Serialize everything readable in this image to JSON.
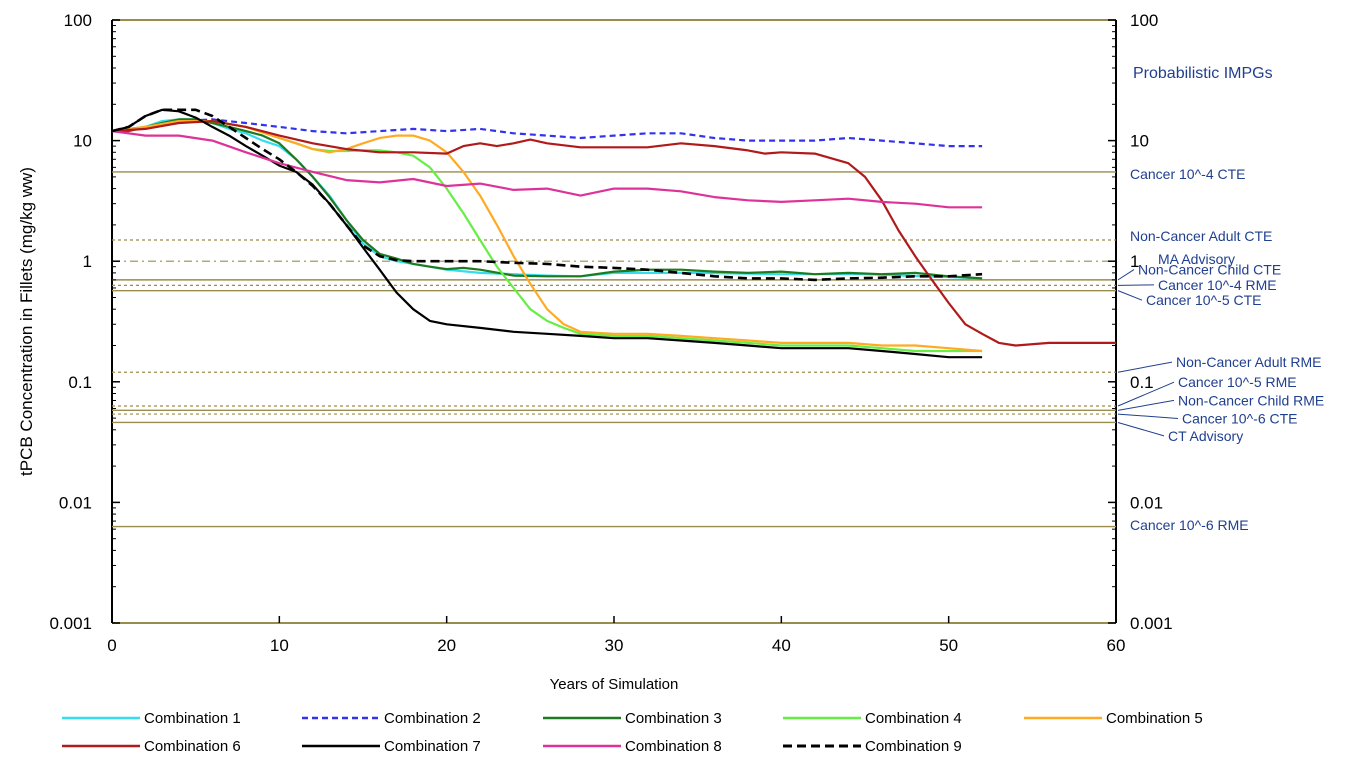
{
  "chart_data": {
    "type": "line",
    "title": "",
    "xlabel": "Years of Simulation",
    "ylabel": "tPCB Concentration in Fillets  (mg/kg ww)",
    "xlim": [
      0,
      60
    ],
    "ylim": [
      0.001,
      100
    ],
    "yscale": "log",
    "x_ticks": [
      "0",
      "10",
      "20",
      "30",
      "40",
      "50",
      "60"
    ],
    "y_ticks_left": [
      "0.001",
      "0.01",
      "0.1",
      "1",
      "10",
      "100"
    ],
    "y_ticks_right": [
      "0.001",
      "0.01",
      "0.1",
      "1",
      "10",
      "100"
    ],
    "right_axis_title": "Probabilistic IMPGs",
    "legend_position": "bottom",
    "series": [
      {
        "name": "Combination 1",
        "color": "#33ddee",
        "dash": "solid",
        "x": [
          0,
          1,
          2,
          3,
          4,
          5,
          6,
          7,
          8,
          9,
          10,
          11,
          12,
          13,
          14,
          15,
          16,
          17,
          18,
          19,
          20,
          22,
          24,
          26,
          28,
          30,
          35,
          40,
          45,
          50,
          52
        ],
        "y": [
          12,
          12,
          13,
          14.5,
          15,
          15,
          14,
          12.5,
          11.5,
          10,
          9,
          7,
          5,
          3.5,
          2.2,
          1.4,
          1.1,
          1.0,
          0.95,
          0.9,
          0.85,
          0.8,
          0.78,
          0.76,
          0.75,
          0.8,
          0.8,
          0.78,
          0.78,
          0.74,
          0.72
        ]
      },
      {
        "name": "Combination 2",
        "color": "#3333ee",
        "dash": "dashed",
        "x": [
          0,
          2,
          4,
          6,
          8,
          10,
          12,
          14,
          16,
          18,
          20,
          22,
          24,
          26,
          28,
          30,
          32,
          34,
          36,
          38,
          40,
          42,
          44,
          46,
          48,
          50,
          52
        ],
        "y": [
          12,
          13,
          14.5,
          15,
          14,
          13,
          12,
          11.5,
          12,
          12.5,
          12,
          12.5,
          11.5,
          11,
          10.5,
          11,
          11.5,
          11.5,
          10.5,
          10,
          10,
          10,
          10.5,
          10,
          9.5,
          9,
          9
        ]
      },
      {
        "name": "Combination 3",
        "color": "#1f7a1f",
        "dash": "solid",
        "x": [
          0,
          1,
          2,
          3,
          4,
          5,
          6,
          7,
          8,
          9,
          10,
          11,
          12,
          13,
          14,
          15,
          16,
          17,
          18,
          19,
          20,
          21,
          22,
          24,
          26,
          28,
          30,
          32,
          34,
          36,
          38,
          40,
          42,
          44,
          46,
          48,
          50,
          52
        ],
        "y": [
          12,
          12,
          13,
          14,
          15,
          15,
          14,
          13,
          12,
          11,
          9.5,
          7,
          5,
          3.4,
          2.2,
          1.5,
          1.15,
          1.05,
          0.95,
          0.9,
          0.86,
          0.88,
          0.85,
          0.76,
          0.75,
          0.75,
          0.82,
          0.85,
          0.85,
          0.82,
          0.8,
          0.82,
          0.78,
          0.8,
          0.78,
          0.8,
          0.75,
          0.72
        ]
      },
      {
        "name": "Combination 4",
        "color": "#66ee44",
        "dash": "solid",
        "x": [
          0,
          2,
          4,
          6,
          8,
          10,
          11,
          12,
          13,
          14,
          15,
          16,
          17,
          18,
          19,
          20,
          21,
          22,
          23,
          24,
          25,
          26,
          27,
          28,
          30,
          32,
          34,
          36,
          38,
          40,
          42,
          44,
          46,
          48,
          50,
          52
        ],
        "y": [
          12,
          13,
          14.5,
          14.5,
          13,
          10.5,
          9.5,
          8.5,
          8.2,
          8.2,
          8.3,
          8.3,
          8,
          7.5,
          6,
          4,
          2.5,
          1.5,
          0.9,
          0.6,
          0.4,
          0.32,
          0.28,
          0.25,
          0.24,
          0.24,
          0.23,
          0.22,
          0.21,
          0.2,
          0.2,
          0.2,
          0.19,
          0.18,
          0.18,
          0.18
        ]
      },
      {
        "name": "Combination 5",
        "color": "#ffaa22",
        "dash": "solid",
        "x": [
          0,
          2,
          4,
          6,
          8,
          10,
          11,
          12,
          13,
          14,
          15,
          16,
          17,
          18,
          19,
          20,
          21,
          22,
          23,
          24,
          25,
          26,
          27,
          28,
          30,
          32,
          34,
          36,
          38,
          40,
          42,
          44,
          46,
          48,
          50,
          52
        ],
        "y": [
          12,
          13,
          14.5,
          14.5,
          13,
          10.5,
          9.5,
          8.5,
          8,
          8.5,
          9.5,
          10.5,
          11,
          11,
          10,
          8,
          5.5,
          3.5,
          2,
          1.1,
          0.65,
          0.4,
          0.3,
          0.26,
          0.25,
          0.25,
          0.24,
          0.23,
          0.22,
          0.21,
          0.21,
          0.21,
          0.2,
          0.2,
          0.19,
          0.18
        ]
      },
      {
        "name": "Combination 6",
        "color": "#b01a1a",
        "dash": "solid",
        "x": [
          0,
          2,
          4,
          6,
          8,
          10,
          12,
          14,
          16,
          18,
          20,
          21,
          22,
          23,
          24,
          25,
          26,
          28,
          30,
          32,
          34,
          36,
          38,
          39,
          40,
          42,
          44,
          45,
          46,
          47,
          48,
          49,
          50,
          51,
          52,
          53,
          54,
          56,
          58,
          60
        ],
        "y": [
          12,
          12.5,
          14,
          14.5,
          13,
          11,
          9.5,
          8.5,
          8,
          8,
          7.8,
          9,
          9.5,
          9,
          9.5,
          10.2,
          9.5,
          8.8,
          8.8,
          8.8,
          9.5,
          9,
          8.3,
          7.8,
          8,
          7.8,
          6.5,
          5,
          3.2,
          1.8,
          1.1,
          0.7,
          0.45,
          0.3,
          0.25,
          0.21,
          0.2,
          0.21,
          0.21,
          0.21
        ]
      },
      {
        "name": "Combination 7",
        "color": "#000000",
        "dash": "solid",
        "x": [
          0,
          1,
          2,
          3,
          4,
          5,
          6,
          7,
          8,
          9,
          10,
          11,
          12,
          13,
          14,
          15,
          16,
          17,
          18,
          19,
          20,
          22,
          24,
          26,
          28,
          30,
          32,
          34,
          36,
          38,
          40,
          42,
          44,
          46,
          48,
          50,
          52
        ],
        "y": [
          12,
          13,
          16,
          18,
          17.5,
          15.5,
          13,
          11,
          9,
          7.5,
          6.2,
          5.5,
          4.3,
          3,
          2,
          1.3,
          0.85,
          0.55,
          0.4,
          0.32,
          0.3,
          0.28,
          0.26,
          0.25,
          0.24,
          0.23,
          0.23,
          0.22,
          0.21,
          0.2,
          0.19,
          0.19,
          0.19,
          0.18,
          0.17,
          0.16,
          0.16
        ]
      },
      {
        "name": "Combination 8",
        "color": "#dd3399",
        "dash": "solid",
        "x": [
          0,
          2,
          4,
          6,
          8,
          10,
          12,
          14,
          16,
          18,
          20,
          22,
          24,
          26,
          28,
          30,
          32,
          34,
          36,
          38,
          40,
          42,
          44,
          46,
          48,
          50,
          52
        ],
        "y": [
          12,
          11,
          11,
          10,
          8,
          6.5,
          5.5,
          4.7,
          4.5,
          4.8,
          4.2,
          4.4,
          3.9,
          4,
          3.5,
          4,
          4,
          3.8,
          3.4,
          3.2,
          3.1,
          3.2,
          3.3,
          3.1,
          3,
          2.8,
          2.8
        ]
      },
      {
        "name": "Combination 9",
        "color": "#000000",
        "dash": "dashed",
        "x": [
          0,
          1,
          2,
          3,
          4,
          5,
          6,
          7,
          8,
          9,
          10,
          11,
          12,
          13,
          14,
          15,
          16,
          17,
          18,
          20,
          22,
          24,
          26,
          28,
          30,
          32,
          34,
          36,
          38,
          40,
          42,
          44,
          46,
          48,
          50,
          52
        ],
        "y": [
          12,
          13,
          16,
          18,
          18,
          18,
          16,
          13,
          10.5,
          8.5,
          7,
          5.5,
          4.2,
          3,
          2,
          1.35,
          1.1,
          1.02,
          1.0,
          1.0,
          1.0,
          0.97,
          0.95,
          0.9,
          0.88,
          0.85,
          0.8,
          0.75,
          0.72,
          0.72,
          0.7,
          0.72,
          0.73,
          0.75,
          0.75,
          0.78
        ]
      }
    ],
    "reference_lines": [
      {
        "y": 5.5,
        "style": "solid",
        "color": "#9a8c4c",
        "label": "Cancer 10^-4 CTE",
        "label_y": 5.5
      },
      {
        "y": 1.5,
        "style": "dotted",
        "color": "#9a8c4c",
        "label": "Non-Cancer Adult CTE",
        "label_y": 1.5
      },
      {
        "y": 1.0,
        "style": "dashdot",
        "color": "#9a8c4c",
        "label": "MA  Advisory",
        "label_y": 0.97
      },
      {
        "y": 0.7,
        "style": "solid",
        "color": "#9a8c4c",
        "label": "Non-Cancer Child CTE",
        "label_y": 0.79
      },
      {
        "y": 0.63,
        "style": "dotted",
        "color": "#9a8c4c",
        "label": "Cancer 10^-4 RME",
        "label_y": 0.59
      },
      {
        "y": 0.57,
        "style": "solid",
        "color": "#9a8c4c",
        "label": "Cancer 10^-5 CTE",
        "label_y": 0.44
      },
      {
        "y": 0.12,
        "style": "dotted",
        "color": "#9a8c4c",
        "label": "Non-Cancer Adult RME",
        "label_y": 0.135
      },
      {
        "y": 0.063,
        "style": "dotted",
        "color": "#9a8c4c",
        "label": "Cancer 10^-5 RME",
        "label_y": 0.092
      },
      {
        "y": 0.058,
        "style": "solid",
        "color": "#9a8c4c",
        "label": "Non-Cancer Child RME",
        "label_y": 0.065
      },
      {
        "y": 0.054,
        "style": "dotted",
        "color": "#9a8c4c",
        "label": "Cancer 10^-6 CTE",
        "label_y": 0.046
      },
      {
        "y": 0.046,
        "style": "solid",
        "color": "#9a8c4c",
        "label": "CT Advisory",
        "label_y": 0.033
      },
      {
        "y": 0.0063,
        "style": "solid",
        "color": "#9a8c4c",
        "label": "Cancer 10^-6 RME",
        "label_y": 0.006
      }
    ]
  }
}
